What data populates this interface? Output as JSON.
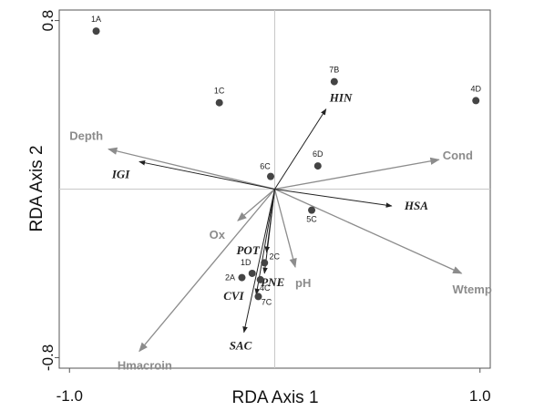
{
  "chart_data": {
    "type": "scatter",
    "subtype": "rda-triplot",
    "xlabel": "RDA Axis 1",
    "ylabel": "RDA Axis 2",
    "xlim": [
      -1.05,
      1.05
    ],
    "ylim": [
      -0.85,
      0.85
    ],
    "x_ticks": [
      {
        "value": -1.0,
        "label": "-1.0"
      },
      {
        "value": 1.0,
        "label": "1.0"
      }
    ],
    "y_ticks": [
      {
        "value": 0.8,
        "label": "0.8"
      },
      {
        "value": -0.8,
        "label": "-0.8"
      }
    ],
    "zero_lines": true,
    "sites": [
      {
        "label": "1A",
        "x": -0.87,
        "y": 0.75
      },
      {
        "label": "7B",
        "x": 0.29,
        "y": 0.51
      },
      {
        "label": "4D",
        "x": 0.98,
        "y": 0.42
      },
      {
        "label": "1C",
        "x": -0.27,
        "y": 0.41
      },
      {
        "label": "6D",
        "x": 0.21,
        "y": 0.11
      },
      {
        "label": "6C",
        "x": -0.02,
        "y": 0.06
      },
      {
        "label": "5C",
        "x": 0.18,
        "y": -0.1
      },
      {
        "label": "2C",
        "x": -0.05,
        "y": -0.35
      },
      {
        "label": "1D",
        "x": -0.11,
        "y": -0.4
      },
      {
        "label": "2A",
        "x": -0.16,
        "y": -0.42
      },
      {
        "label": "4C",
        "x": -0.07,
        "y": -0.43
      },
      {
        "label": "7C",
        "x": -0.08,
        "y": -0.51
      }
    ],
    "environmental_vectors": [
      {
        "label": "Depth",
        "x": -0.81,
        "y": 0.19
      },
      {
        "label": "Cond",
        "x": 0.8,
        "y": 0.14
      },
      {
        "label": "Ox",
        "x": -0.18,
        "y": -0.15
      },
      {
        "label": "pH",
        "x": 0.1,
        "y": -0.37
      },
      {
        "label": "Wtemp",
        "x": 0.91,
        "y": -0.4
      },
      {
        "label": "Hmacroin",
        "x": -0.66,
        "y": -0.77
      }
    ],
    "species_vectors": [
      {
        "label": "HIN",
        "x": 0.25,
        "y": 0.38
      },
      {
        "label": "IGI",
        "x": -0.66,
        "y": 0.13
      },
      {
        "label": "HSA",
        "x": 0.57,
        "y": -0.08
      },
      {
        "label": "POT",
        "x": -0.04,
        "y": -0.3
      },
      {
        "label": "PNE",
        "x": -0.05,
        "y": -0.4
      },
      {
        "label": "CVI",
        "x": -0.09,
        "y": -0.5
      },
      {
        "label": "SAC",
        "x": -0.15,
        "y": -0.68
      }
    ]
  },
  "colors": {
    "site_marker": "#444444",
    "species_vector": "#222222",
    "environmental_vector": "#8c8c8c",
    "zero_line": "#c8c8c8",
    "frame": "#555555"
  }
}
